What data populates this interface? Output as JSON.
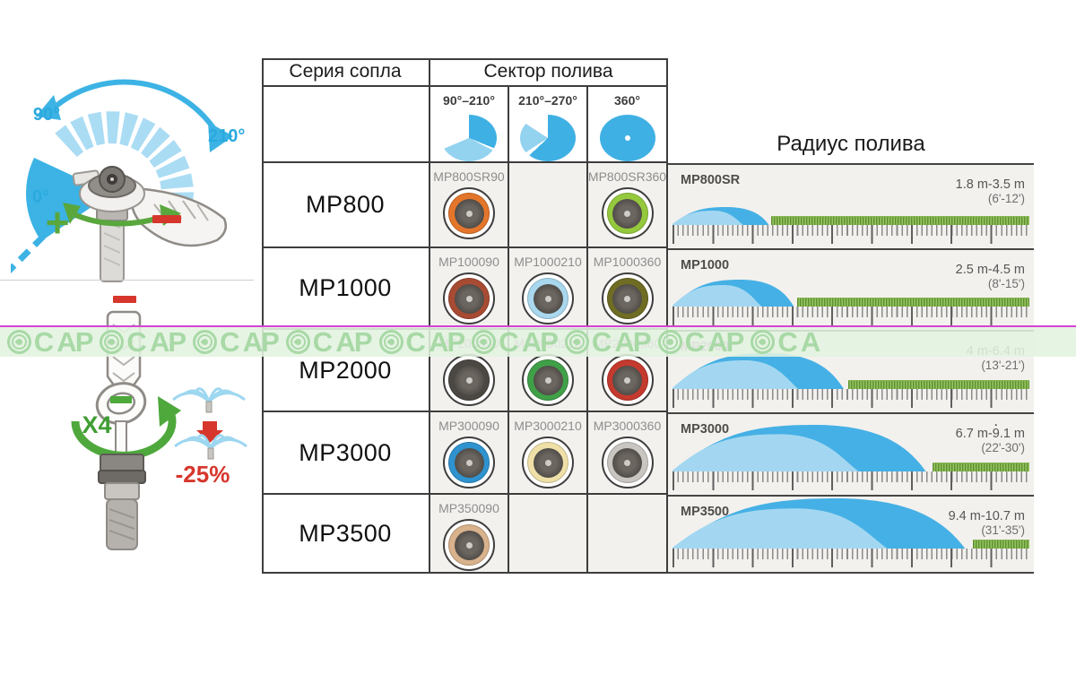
{
  "header": {
    "series": "Серия сопла",
    "sector": "Сектор полива",
    "radius": "Радиус полива"
  },
  "sector_columns": [
    {
      "label": "90°–210°"
    },
    {
      "label": "210°–270°"
    },
    {
      "label": "360°"
    }
  ],
  "rows": [
    {
      "series": "MP800",
      "nozzles": [
        {
          "label": "MP800SR90",
          "band": "#e4762b"
        },
        null,
        {
          "label": "MP800SR360",
          "band": "#95c93d"
        }
      ],
      "radius": {
        "label": "MP800SR",
        "meters": "1.8 m-3.5 m",
        "feet": "(6'-12')",
        "extent_pct": 27,
        "peak": 20
      }
    },
    {
      "series": "MP1000",
      "nozzles": [
        {
          "label": "MP100090",
          "band": "#a84b33"
        },
        {
          "label": "MP1000210",
          "band": "#a9d8ee"
        },
        {
          "label": "MP1000360",
          "band": "#6f6d24"
        }
      ],
      "radius": {
        "label": "MP1000",
        "meters": "2.5 m-4.5 m",
        "feet": "(8'-15')",
        "extent_pct": 34,
        "peak": 30
      }
    },
    {
      "series": "MP2000",
      "tinted": true,
      "nozzles": [
        {
          "label": "MP200090",
          "band": "#4b4743"
        },
        {
          "label": "MP2000210",
          "band": "#40a048"
        },
        {
          "label": "MP2000360",
          "band": "#c53a2e"
        }
      ],
      "radius": {
        "label": "MP2000",
        "meters": "4 m-6.4 m",
        "feet": "(13'-21')",
        "extent_pct": 48,
        "peak": 40
      }
    },
    {
      "series": "MP3000",
      "nozzles": [
        {
          "label": "MP300090",
          "band": "#2f93cf"
        },
        {
          "label": "MP3000210",
          "band": "#efe0a8"
        },
        {
          "label": "MP3000360",
          "band": "#c9c6c2"
        }
      ],
      "radius": {
        "label": "MP3000",
        "meters": "6.7 m-9.1 m",
        "feet": "(22'-30')",
        "extent_pct": 71,
        "peak": 52,
        "corner_dot": "."
      }
    },
    {
      "series": "MP3500",
      "nozzles": [
        {
          "label": "MP350090",
          "band": "#d8b28c"
        },
        null,
        null
      ],
      "radius": {
        "label": "MP3500",
        "meters": "9.4 m-10.7 m",
        "feet": "(31'-35')",
        "extent_pct": 82,
        "peak": 56
      }
    }
  ],
  "arc_diagram": {
    "deg90": "90°",
    "deg210": "210°",
    "deg0": "0°",
    "plus": "+"
  },
  "tool_diagram": {
    "turns": "X4",
    "reduction": "-25%"
  },
  "watermark": {
    "p": "Р",
    "ca": "СА",
    "repeats": 9
  }
}
